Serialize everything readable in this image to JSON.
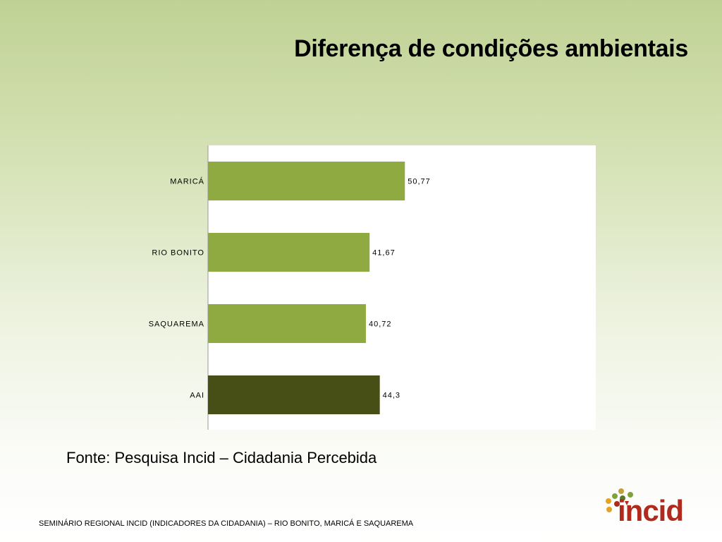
{
  "title": "Diferença de condições ambientais",
  "source": "Fonte: Pesquisa Incid – Cidadania Percebida",
  "footer": "SEMINÁRIO REGIONAL INCID (INDICADORES DA CIDADANIA) – RIO BONITO, MARICÁ E SAQUAREMA",
  "logo": {
    "text": "incid",
    "icon": "incid-logo-icon"
  },
  "colors": {
    "bar": "#8faa40",
    "highlight_bar": "#474f16",
    "logo_red": "#b02a1e"
  },
  "chart_data": {
    "type": "bar",
    "orientation": "horizontal",
    "categories": [
      "MARICÁ",
      "RIO BONITO",
      "SAQUAREMA",
      "AAI"
    ],
    "values": [
      50.77,
      41.67,
      40.72,
      44.3
    ],
    "value_labels": [
      "50,77",
      "41,67",
      "40,72",
      "44,3"
    ],
    "highlight": [
      "AAI"
    ],
    "xlim": [
      0,
      100
    ],
    "title": "",
    "xlabel": "",
    "ylabel": "",
    "grid": false,
    "legend": "none"
  }
}
